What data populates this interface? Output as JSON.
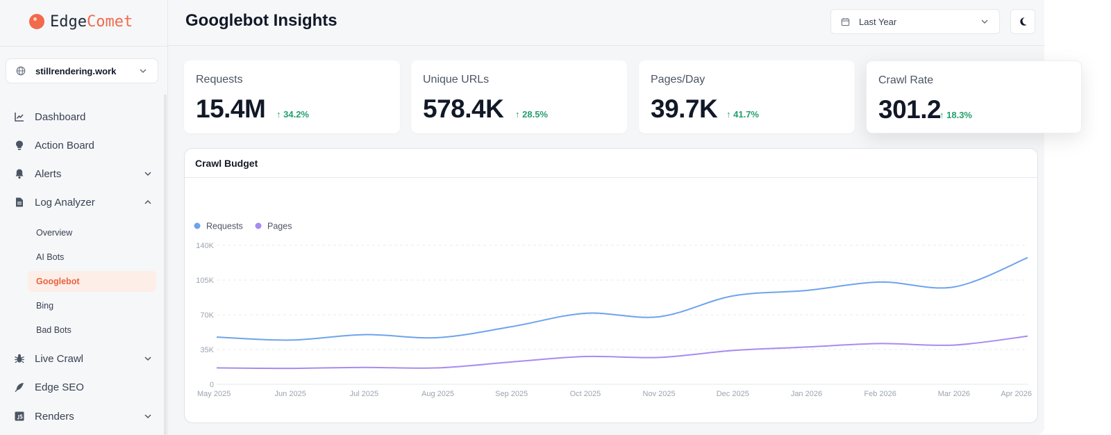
{
  "brand": {
    "part1": "Edge",
    "part2": "Comet"
  },
  "site_selector": {
    "value": "stillrendering.work"
  },
  "nav": [
    {
      "label": "Dashboard",
      "icon": "chart-line-icon",
      "expandable": ""
    },
    {
      "label": "Action Board",
      "icon": "lightbulb-icon",
      "expandable": ""
    },
    {
      "label": "Alerts",
      "icon": "bell-icon",
      "expandable": "down"
    },
    {
      "label": "Log Analyzer",
      "icon": "document-icon",
      "expandable": "up"
    },
    {
      "label": "Live Crawl",
      "icon": "bug-icon",
      "expandable": "down"
    },
    {
      "label": "Edge SEO",
      "icon": "feather-icon",
      "expandable": ""
    },
    {
      "label": "Renders",
      "icon": "js-file-icon",
      "expandable": "down"
    }
  ],
  "subnav": [
    {
      "label": "Overview",
      "active": false
    },
    {
      "label": "AI Bots",
      "active": false
    },
    {
      "label": "Googlebot",
      "active": true
    },
    {
      "label": "Bing",
      "active": false
    },
    {
      "label": "Bad Bots",
      "active": false
    }
  ],
  "header": {
    "title": "Googlebot Insights",
    "date_range": "Last Year",
    "theme_icon": "moon-icon"
  },
  "stats": [
    {
      "label": "Requests",
      "value": "15.4M",
      "delta": "34.2%"
    },
    {
      "label": "Unique URLs",
      "value": "578.4K",
      "delta": "28.5%"
    },
    {
      "label": "Pages/Day",
      "value": "39.7K",
      "delta": "41.7%"
    },
    {
      "label": "Crawl Rate",
      "value": "301.2",
      "delta": "18.3%"
    }
  ],
  "colors": {
    "accent": "#f26a4b",
    "positive": "#22a06b",
    "requests": "#6ea3ec",
    "pages": "#a78bf0"
  },
  "chart_data": {
    "type": "line",
    "title": "Crawl Budget",
    "x": [
      "May 2025",
      "Jun 2025",
      "Jul 2025",
      "Aug 2025",
      "Sep 2025",
      "Oct 2025",
      "Nov 2025",
      "Dec 2025",
      "Jan 2026",
      "Feb 2026",
      "Mar 2026",
      "Apr 2026"
    ],
    "series": [
      {
        "name": "Requests",
        "color": "#6ea3ec",
        "values": [
          47500,
          44500,
          50000,
          47000,
          58000,
          71500,
          68000,
          89000,
          94500,
          103000,
          98000,
          127500
        ]
      },
      {
        "name": "Pages",
        "color": "#a78bf0",
        "values": [
          16500,
          16000,
          17000,
          16500,
          22500,
          28000,
          27000,
          34000,
          37500,
          41000,
          39500,
          48500
        ]
      }
    ],
    "yticks": [
      "0",
      "35K",
      "70K",
      "105K",
      "140K"
    ],
    "ylim": [
      0,
      140000
    ],
    "grid": true,
    "legend": "top-left"
  }
}
